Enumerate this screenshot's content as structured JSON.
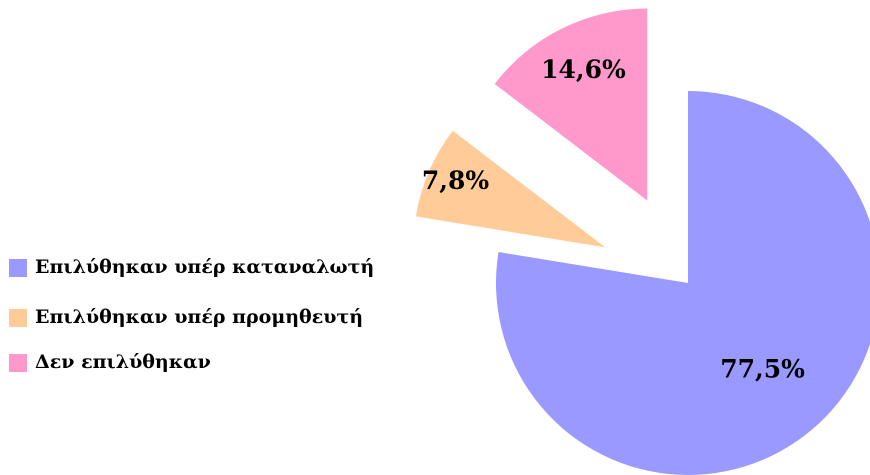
{
  "chart_data": {
    "type": "pie",
    "categories": [
      "Επιλύθηκαν υπέρ καταναλωτή",
      "Επιλύθηκαν υπέρ προμηθευτή",
      "Δεν επιλύθηκαν"
    ],
    "values": [
      77.5,
      7.8,
      14.6
    ],
    "value_labels": [
      "77,5%",
      "7,8%",
      "14,6%"
    ],
    "colors": [
      "#9999ff",
      "#ffcc99",
      "#ff99cc"
    ],
    "legend": "left"
  }
}
